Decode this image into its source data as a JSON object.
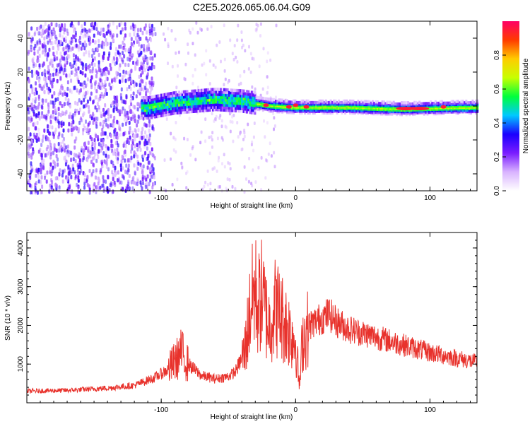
{
  "figure": {
    "title": "C2E5.2026.065.06.04.G09"
  },
  "chart_data": [
    {
      "type": "heatmap",
      "xlabel": "Height of straight line (km)",
      "ylabel": "Frequency (Hz)",
      "xlim": [
        -200,
        135
      ],
      "ylim": [
        -50,
        50
      ],
      "xticks": [
        -100,
        0,
        100
      ],
      "xtick_labels": [
        "-100",
        "0",
        "100"
      ],
      "yticks": [
        -40,
        -20,
        0,
        20,
        40
      ],
      "ytick_labels": [
        "-40",
        "-20",
        "0",
        "20",
        "40"
      ],
      "ridge": {
        "description_points": [
          [
            -110,
            -1
          ],
          [
            -90,
            2
          ],
          [
            -60,
            4
          ],
          [
            -40,
            3
          ],
          [
            -20,
            0.5
          ],
          [
            0,
            -0.5
          ],
          [
            40,
            -0.5
          ],
          [
            80,
            -1.5
          ],
          [
            100,
            -1
          ],
          [
            135,
            -0.5
          ]
        ]
      },
      "colorbar": {
        "label": "Normalized spectral amplitude",
        "ticks": [
          0.0,
          0.2,
          0.4,
          0.6,
          0.8
        ],
        "tick_labels": [
          "0.0",
          "0.2",
          "0.4",
          "0.6",
          "0.8"
        ],
        "range": [
          0,
          1
        ],
        "colors": [
          "#ffffff",
          "#d9b3ff",
          "#7a1cff",
          "#1a00ff",
          "#00c8ff",
          "#00ff3c",
          "#c8ff00",
          "#ffcc00",
          "#ff3b00",
          "#ff0066"
        ]
      }
    },
    {
      "type": "line",
      "xlabel": "Height of straight line (km)",
      "ylabel": "SNR (10 * v/v)",
      "xlim": [
        -200,
        135
      ],
      "ylim": [
        0,
        4400
      ],
      "xticks": [
        -100,
        0,
        100
      ],
      "xtick_labels": [
        "-100",
        "0",
        "100"
      ],
      "yticks": [
        1000,
        2000,
        3000,
        4000
      ],
      "ytick_labels": [
        "1000",
        "2000",
        "3000",
        "4000"
      ],
      "series": [
        {
          "name": "SNR",
          "color": "#e8322c",
          "envelope_x": [
            -200,
            -170,
            -140,
            -120,
            -105,
            -95,
            -88,
            -85,
            -80,
            -70,
            -60,
            -50,
            -45,
            -38,
            -33,
            -30,
            -28,
            -25,
            -22,
            -20,
            -15,
            -10,
            -5,
            0,
            3,
            5,
            10,
            20,
            25,
            30,
            40,
            60,
            80,
            100,
            120,
            135
          ],
          "envelope_mid": [
            300,
            320,
            380,
            450,
            650,
            850,
            1150,
            1300,
            1000,
            700,
            620,
            680,
            800,
            1300,
            2600,
            2900,
            2500,
            2800,
            2300,
            2000,
            2500,
            2200,
            1900,
            1600,
            400,
            1600,
            2000,
            2200,
            2300,
            2100,
            1900,
            1700,
            1500,
            1300,
            1150,
            1050
          ]
        }
      ]
    }
  ]
}
